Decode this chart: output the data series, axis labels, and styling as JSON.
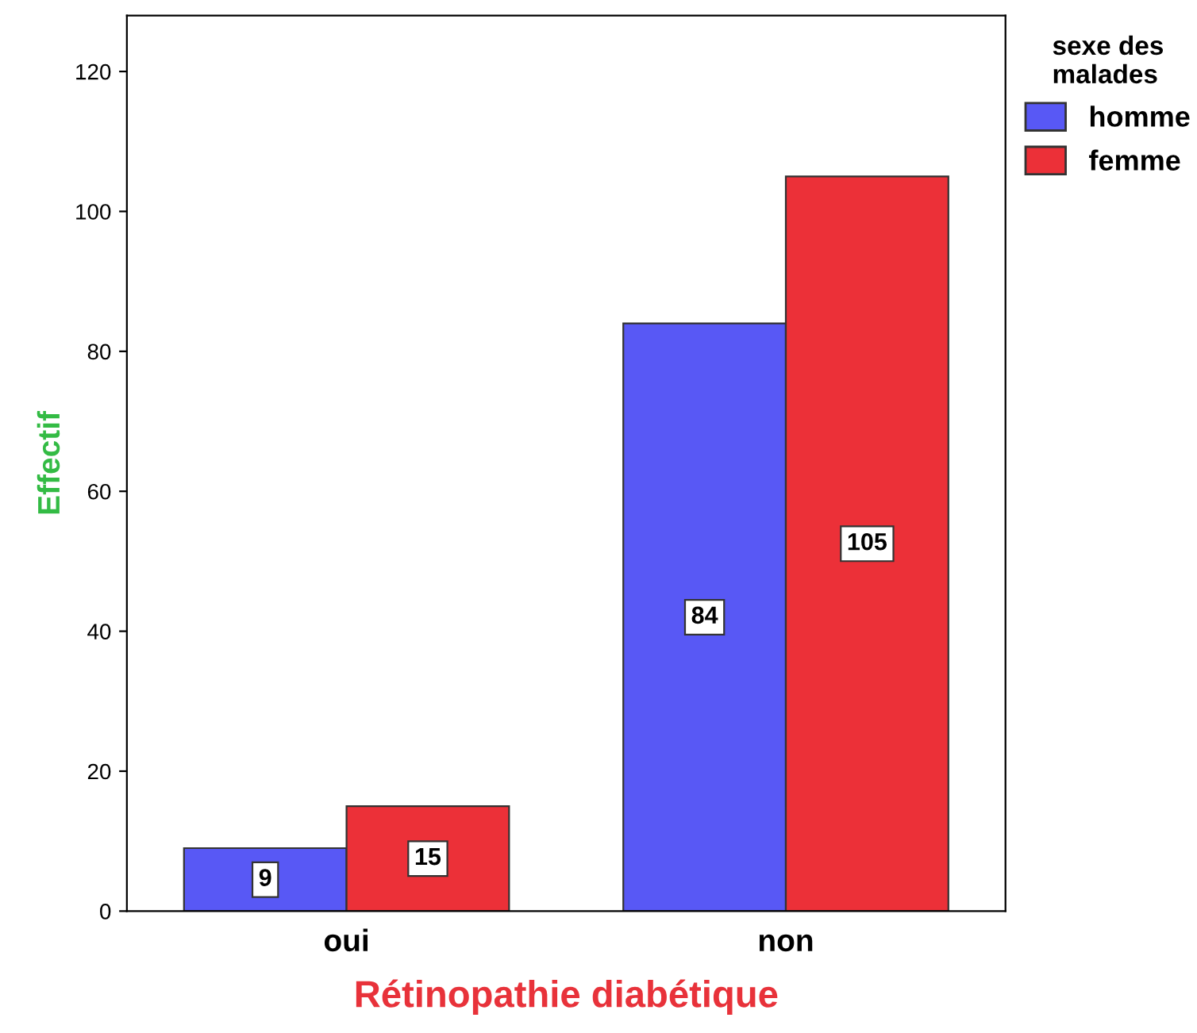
{
  "chart_data": {
    "type": "bar",
    "xlabel": "Rétinopathie diabétique",
    "ylabel": "Effectif",
    "legend_title": "sexe des\nmalades",
    "categories": [
      "oui",
      "non"
    ],
    "series": [
      {
        "name": "homme",
        "color": "#5858f5",
        "values": [
          9,
          84
        ]
      },
      {
        "name": "femme",
        "color": "#ec3038",
        "values": [
          15,
          105
        ]
      }
    ],
    "ylim": [
      0,
      128
    ],
    "yticks": [
      0,
      20,
      40,
      60,
      80,
      100,
      120
    ],
    "grid": false,
    "legend": "top right",
    "data_labels": true
  }
}
